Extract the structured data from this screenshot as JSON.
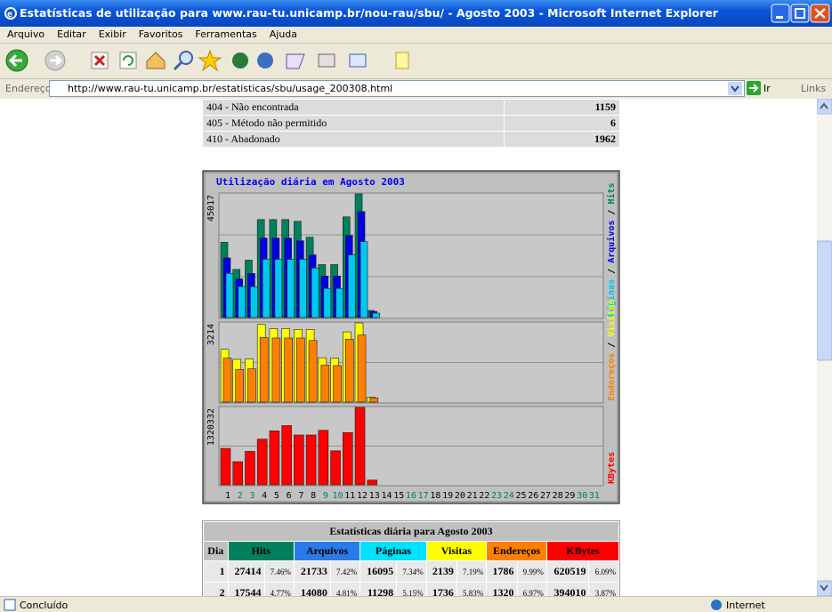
{
  "window": {
    "title": "Estatísticas de utilização para www.rau-tu.unicamp.br/nou-rau/sbu/ - Agosto 2003 - Microsoft Internet Explorer"
  },
  "menu": [
    "Arquivo",
    "Editar",
    "Exibir",
    "Favoritos",
    "Ferramentas",
    "Ajuda"
  ],
  "address": {
    "label": "Endereço",
    "url": "http://www.rau-tu.unicamp.br/estatisticas/sbu/usage_200308.html",
    "go": "Ir",
    "links": "Links"
  },
  "status_table": {
    "rows": [
      [
        "404 - Não encontrada",
        "1159"
      ],
      [
        "405 - Método não permitido",
        "6"
      ],
      [
        "410 - Abadonado",
        "1962"
      ]
    ]
  },
  "chart_data": {
    "type": "bar",
    "title": "Utilização diária em Agosto 2003",
    "legend_separator": " / ",
    "categories": [
      "1",
      "2",
      "3",
      "4",
      "5",
      "6",
      "7",
      "8",
      "9",
      "10",
      "11",
      "12",
      "13",
      "14",
      "15",
      "16",
      "17",
      "18",
      "19",
      "20",
      "21",
      "22",
      "23",
      "24",
      "25",
      "26",
      "27",
      "28",
      "29",
      "30",
      "31"
    ],
    "category_colors": [
      "#000000",
      "#00805c",
      "#00805c",
      "#000000",
      "#000000",
      "#000000",
      "#000000",
      "#000000",
      "#00805c",
      "#00805c",
      "#000000",
      "#000000",
      "#000000",
      "#000000",
      "#000000",
      "#00805c",
      "#00805c",
      "#000000",
      "#000000",
      "#000000",
      "#000000",
      "#000000",
      "#00805c",
      "#00805c",
      "#000000",
      "#000000",
      "#000000",
      "#000000",
      "#000000",
      "#00805c",
      "#00805c"
    ],
    "panels": [
      {
        "max": 45017,
        "series": [
          {
            "name": "Hits",
            "color": "#00805c",
            "values": [
              27414,
              17544,
              20900,
              35692,
              35692,
              35692,
              35049,
              29261,
              19293,
              19293,
              36657,
              45017,
              2572,
              null,
              null,
              null,
              null,
              null,
              null,
              null,
              null,
              null,
              null,
              null,
              null,
              null,
              null,
              null,
              null,
              null,
              null
            ]
          },
          {
            "name": "Arquivos",
            "color": "#0000e0",
            "values": [
              21733,
              14080,
              16078,
              28940,
              28940,
              28940,
              27975,
              22830,
              15113,
              15113,
              29904,
              38586,
              2251,
              null,
              null,
              null,
              null,
              null,
              null,
              null,
              null,
              null,
              null,
              null,
              null,
              null,
              null,
              null,
              null,
              null,
              null
            ]
          },
          {
            "name": "Páginas",
            "color": "#00c8f0",
            "values": [
              16095,
              11298,
              11254,
              21222,
              21222,
              21222,
              21222,
              18007,
              10611,
              10611,
              22830,
              27653,
              1608,
              null,
              null,
              null,
              null,
              null,
              null,
              null,
              null,
              null,
              null,
              null,
              null,
              null,
              null,
              null,
              null,
              null,
              null
            ]
          }
        ]
      },
      {
        "max": 3214,
        "series": [
          {
            "name": "Visitas",
            "color": "#ffff00",
            "values": [
              2139,
              1736,
              1750,
              3150,
              2980,
              2980,
              2950,
              2950,
              1800,
              1780,
              2850,
              3214,
              200,
              null,
              null,
              null,
              null,
              null,
              null,
              null,
              null,
              null,
              null,
              null,
              null,
              null,
              null,
              null,
              null,
              null,
              null
            ]
          },
          {
            "name": "Endereços",
            "color": "#ff8000",
            "values": [
              1786,
              1320,
              1350,
              2620,
              2600,
              2600,
              2600,
              2500,
              1500,
              1480,
              2550,
              2720,
              170,
              null,
              null,
              null,
              null,
              null,
              null,
              null,
              null,
              null,
              null,
              null,
              null,
              null,
              null,
              null,
              null,
              null,
              null
            ]
          }
        ]
      },
      {
        "max": 1320332,
        "series": [
          {
            "name": "KBytes",
            "color": "#ff0000",
            "values": [
              620519,
              394010,
              570000,
              780000,
              920000,
              1010000,
              850000,
              850000,
              930000,
              580000,
              890000,
              1320332,
              80000,
              null,
              null,
              null,
              null,
              null,
              null,
              null,
              null,
              null,
              null,
              null,
              null,
              null,
              null,
              null,
              null,
              null,
              null
            ]
          }
        ]
      }
    ]
  },
  "daily_table": {
    "title": "Estatísticas diária para Agosto 2003",
    "header": [
      {
        "text": "Dia",
        "color": "#c0c0c0"
      },
      {
        "text": "Hits",
        "color": "#00805c"
      },
      {
        "text": "Arquivos",
        "color": "#2a7ae8"
      },
      {
        "text": "Páginas",
        "color": "#00e0ff"
      },
      {
        "text": "Visitas",
        "color": "#ffff00"
      },
      {
        "text": "Endereços",
        "color": "#ff8000"
      },
      {
        "text": "KBytes",
        "color": "#ff0000"
      }
    ],
    "rows": [
      [
        "1",
        "27414",
        "7.46%",
        "21733",
        "7.42%",
        "16095",
        "7.34%",
        "2139",
        "7.19%",
        "1786",
        "9.99%",
        "620519",
        "6.09%"
      ],
      [
        "2",
        "17544",
        "4.77%",
        "14080",
        "4.81%",
        "11298",
        "5.15%",
        "1736",
        "5.83%",
        "1320",
        "6.97%",
        "394010",
        "3.87%"
      ]
    ]
  },
  "status": {
    "left": "Concluído",
    "zone": "Internet"
  }
}
